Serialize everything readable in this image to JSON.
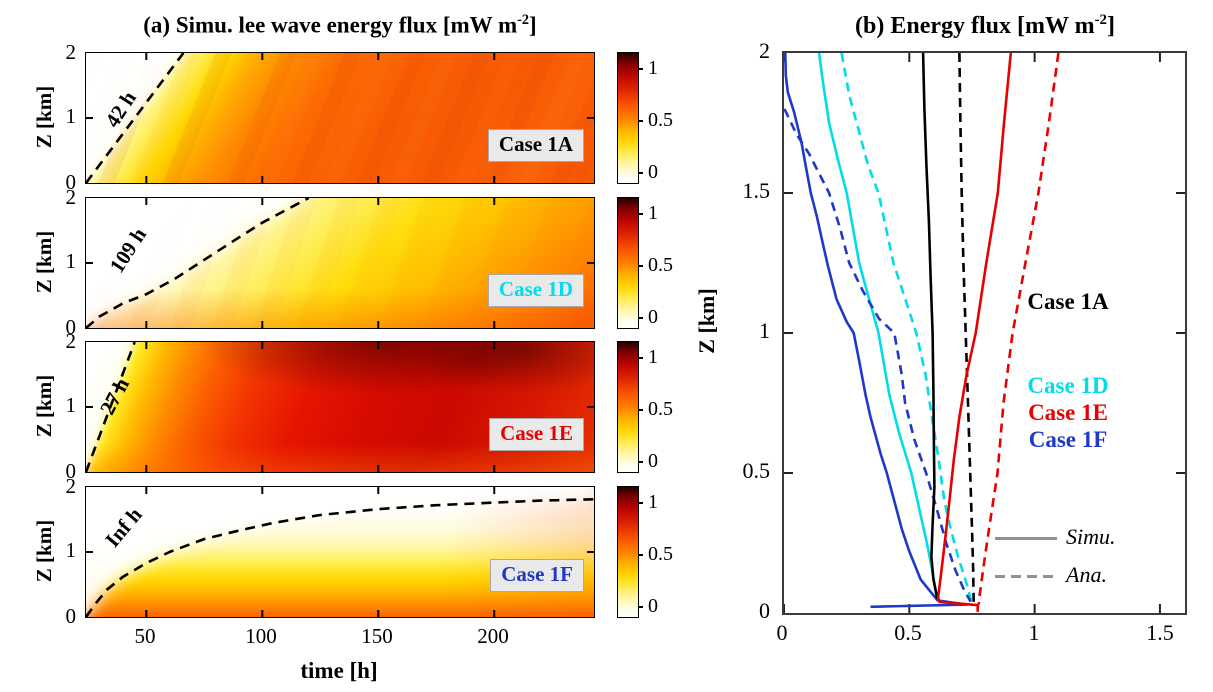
{
  "chart_data": {
    "type": [
      "heatmap",
      "line"
    ],
    "panel_a": {
      "title_pre": "(a) Simu. lee wave energy flux [mW m",
      "title_sup": "-2",
      "title_post": "]",
      "xlabel": "time [h]",
      "ylabel": "Z [km]",
      "x_ticks": [
        "50",
        "100",
        "150",
        "200"
      ],
      "y_ticks_desc": [
        "2",
        "1",
        "0"
      ],
      "t_range_h": [
        24,
        243
      ],
      "z_range_km": [
        0,
        2
      ],
      "colormap": "reversed-hot (white=0, yellow, orange, red, black=max)",
      "value_range": [
        0,
        1.2
      ],
      "colorbar_tick_labels": [
        "1",
        "0.5",
        "0"
      ],
      "subpanels": [
        {
          "case_label": "Case 1A",
          "case_color": "#000000",
          "time_label": "42 h",
          "dashed_curve_t_z": [
            [
              24,
              0
            ],
            [
              66,
              2
            ]
          ],
          "description": "white wedge upper-left, diagonal yellow band along 42 h line, orange (~0.6) bulk with faint diagonal striping"
        },
        {
          "case_label": "Case 1D",
          "case_color": "#00dce8",
          "time_label": "109 h",
          "dashed_curve_t_z": [
            [
              24,
              0
            ],
            [
              30,
              0.18
            ],
            [
              40,
              0.38
            ],
            [
              50,
              0.52
            ],
            [
              62,
              0.75
            ],
            [
              75,
              1.05
            ],
            [
              88,
              1.35
            ],
            [
              100,
              1.62
            ],
            [
              112,
              1.85
            ],
            [
              120,
              2
            ]
          ],
          "description": "white above curve, yellow middle, orange (~0.5) lower right"
        },
        {
          "case_label": "Case 1E",
          "case_color": "#e80000",
          "time_label": "27 h",
          "dashed_curve_t_z": [
            [
              24,
              0
            ],
            [
              45,
              2
            ]
          ],
          "description": "narrow white/yellow band at left, red (~0.8-1.1) bulk, darkest near top middle-right"
        },
        {
          "case_label": "Case 1F",
          "case_color": "#2038c8",
          "time_label": "Inf h",
          "dashed_curve_t_z": [
            [
              24,
              0
            ],
            [
              28,
              0.2
            ],
            [
              33,
              0.42
            ],
            [
              40,
              0.62
            ],
            [
              50,
              0.83
            ],
            [
              60,
              1.0
            ],
            [
              75,
              1.2
            ],
            [
              90,
              1.33
            ],
            [
              105,
              1.45
            ],
            [
              125,
              1.57
            ],
            [
              150,
              1.66
            ],
            [
              175,
              1.72
            ],
            [
              200,
              1.76
            ],
            [
              220,
              1.79
            ],
            [
              243,
              1.81
            ]
          ],
          "description": "white above curve (asymptote ~1.8 km), yellow middle, orange (~0.5) bottom"
        }
      ]
    },
    "panel_b": {
      "title_pre": "(b) Energy flux [mW m",
      "title_sup": "-2",
      "title_post": "]",
      "ylabel": "Z [km]",
      "xlim": [
        0,
        1.6
      ],
      "ylim": [
        0,
        2
      ],
      "x_ticks": [
        "0",
        "0.5",
        "1",
        "1.5"
      ],
      "y_ticks_desc": [
        "2",
        "1.5",
        "1",
        "0.5",
        "0"
      ],
      "legend_cases": [
        {
          "label": "Case 1A",
          "color": "#000000"
        },
        {
          "label": "Case 1D",
          "color": "#00dce8"
        },
        {
          "label": "Case 1E",
          "color": "#e80000"
        },
        {
          "label": "Case 1F",
          "color": "#2038c8"
        }
      ],
      "legend_styles": [
        {
          "label": "Simu.",
          "style": "solid"
        },
        {
          "label": "Ana.",
          "style": "dashed"
        }
      ],
      "series": [
        {
          "name": "Case 1D Simu.",
          "color": "#00dce8",
          "dashed": false,
          "points_x_z": [
            [
              0.14,
              2
            ],
            [
              0.155,
              1.9
            ],
            [
              0.18,
              1.75
            ],
            [
              0.215,
              1.62
            ],
            [
              0.25,
              1.5
            ],
            [
              0.3,
              1.25
            ],
            [
              0.34,
              1.12
            ],
            [
              0.377,
              1.0
            ],
            [
              0.42,
              0.78
            ],
            [
              0.46,
              0.64
            ],
            [
              0.508,
              0.5
            ],
            [
              0.545,
              0.35
            ],
            [
              0.57,
              0.25
            ],
            [
              0.594,
              0.14
            ],
            [
              0.61,
              0.05
            ]
          ]
        },
        {
          "name": "Case 1D Ana.",
          "color": "#00dce8",
          "dashed": true,
          "points_x_z": [
            [
              0.23,
              2
            ],
            [
              0.26,
              1.85
            ],
            [
              0.29,
              1.75
            ],
            [
              0.335,
              1.6
            ],
            [
              0.377,
              1.5
            ],
            [
              0.437,
              1.25
            ],
            [
              0.528,
              1.0
            ],
            [
              0.565,
              0.85
            ],
            [
              0.59,
              0.7
            ],
            [
              0.617,
              0.55
            ],
            [
              0.64,
              0.4
            ],
            [
              0.665,
              0.3
            ],
            [
              0.695,
              0.2
            ],
            [
              0.73,
              0.1
            ],
            [
              0.748,
              0.04
            ]
          ]
        },
        {
          "name": "Case 1F Simu.",
          "color": "#2038c8",
          "dashed": false,
          "points_x_z": [
            [
              0.005,
              2
            ],
            [
              0.007,
              1.92
            ],
            [
              0.015,
              1.86
            ],
            [
              0.04,
              1.79
            ],
            [
              0.07,
              1.68
            ],
            [
              0.09,
              1.58
            ],
            [
              0.107,
              1.5
            ],
            [
              0.13,
              1.42
            ],
            [
              0.155,
              1.32
            ],
            [
              0.175,
              1.24
            ],
            [
              0.21,
              1.12
            ],
            [
              0.25,
              1.04
            ],
            [
              0.278,
              1.0
            ],
            [
              0.3,
              0.9
            ],
            [
              0.325,
              0.78
            ],
            [
              0.345,
              0.7
            ],
            [
              0.385,
              0.57
            ],
            [
              0.41,
              0.5
            ],
            [
              0.44,
              0.4
            ],
            [
              0.47,
              0.3
            ],
            [
              0.5,
              0.22
            ],
            [
              0.545,
              0.12
            ],
            [
              0.59,
              0.07
            ],
            [
              0.613,
              0.045
            ],
            [
              0.73,
              0.03
            ],
            [
              0.345,
              0.022
            ]
          ]
        },
        {
          "name": "Case 1F Ana.",
          "color": "#2038c8",
          "dashed": true,
          "points_x_z": [
            [
              0.002,
              1.8
            ],
            [
              0.05,
              1.71
            ],
            [
              0.1,
              1.64
            ],
            [
              0.123,
              1.6
            ],
            [
              0.18,
              1.5
            ],
            [
              0.225,
              1.37
            ],
            [
              0.26,
              1.25
            ],
            [
              0.315,
              1.15
            ],
            [
              0.38,
              1.05
            ],
            [
              0.44,
              1.0
            ],
            [
              0.47,
              0.85
            ],
            [
              0.483,
              0.75
            ],
            [
              0.52,
              0.62
            ],
            [
              0.567,
              0.5
            ],
            [
              0.61,
              0.37
            ],
            [
              0.647,
              0.25
            ],
            [
              0.685,
              0.15
            ],
            [
              0.72,
              0.08
            ],
            [
              0.745,
              0.04
            ]
          ]
        },
        {
          "name": "Case 1A Simu.",
          "color": "#000000",
          "dashed": false,
          "points_x_z": [
            [
              0.555,
              2
            ],
            [
              0.56,
              1.8
            ],
            [
              0.568,
              1.6
            ],
            [
              0.578,
              1.4
            ],
            [
              0.585,
              1.2
            ],
            [
              0.593,
              1.0
            ],
            [
              0.596,
              0.8
            ],
            [
              0.598,
              0.6
            ],
            [
              0.6,
              0.45
            ],
            [
              0.592,
              0.3
            ],
            [
              0.588,
              0.2
            ],
            [
              0.596,
              0.12
            ],
            [
              0.612,
              0.05
            ]
          ]
        },
        {
          "name": "Case 1A Ana.",
          "color": "#000000",
          "dashed": true,
          "points_x_z": [
            [
              0.7,
              2
            ],
            [
              0.704,
              1.75
            ],
            [
              0.709,
              1.5
            ],
            [
              0.716,
              1.25
            ],
            [
              0.725,
              1.0
            ],
            [
              0.734,
              0.75
            ],
            [
              0.743,
              0.5
            ],
            [
              0.75,
              0.3
            ],
            [
              0.755,
              0.15
            ],
            [
              0.757,
              0.03
            ]
          ]
        },
        {
          "name": "Case 1E Simu.",
          "color": "#e80000",
          "dashed": false,
          "points_x_z": [
            [
              0.905,
              2
            ],
            [
              0.878,
              1.75
            ],
            [
              0.853,
              1.5
            ],
            [
              0.807,
              1.25
            ],
            [
              0.765,
              1.0
            ],
            [
              0.728,
              0.85
            ],
            [
              0.7,
              0.7
            ],
            [
              0.678,
              0.55
            ],
            [
              0.66,
              0.4
            ],
            [
              0.645,
              0.28
            ],
            [
              0.628,
              0.15
            ],
            [
              0.615,
              0.055
            ],
            [
              0.62,
              0.04
            ],
            [
              0.773,
              0.028
            ],
            [
              0.773,
              0.004
            ]
          ]
        },
        {
          "name": "Case 1E Ana.",
          "color": "#e80000",
          "dashed": true,
          "points_x_z": [
            [
              1.095,
              2
            ],
            [
              1.057,
              1.75
            ],
            [
              1.015,
              1.5
            ],
            [
              0.963,
              1.25
            ],
            [
              0.912,
              1.0
            ],
            [
              0.876,
              0.75
            ],
            [
              0.852,
              0.5
            ],
            [
              0.818,
              0.3
            ],
            [
              0.797,
              0.17
            ],
            [
              0.78,
              0.06
            ],
            [
              0.777,
              0.03
            ]
          ]
        }
      ]
    }
  }
}
